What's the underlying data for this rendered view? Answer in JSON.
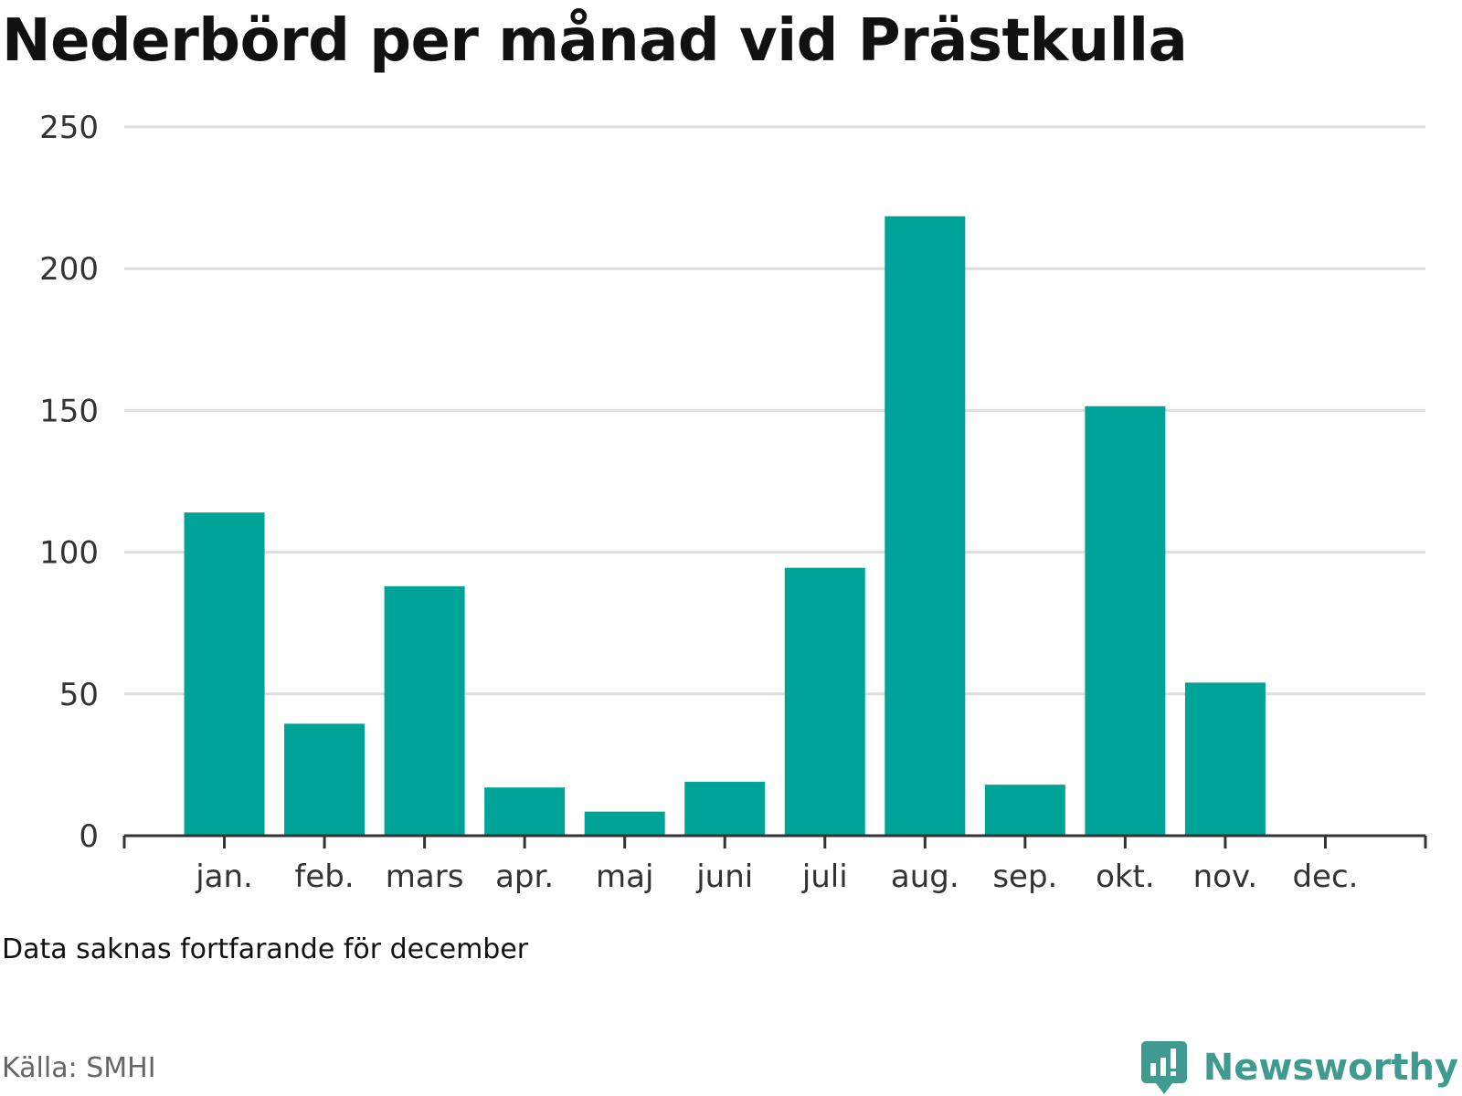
{
  "title": "Nederbörd per månad vid Prästkulla",
  "note": "Data saknas fortfarande för december",
  "source": "Källa: SMHI",
  "brand": {
    "name": "Newsworthy",
    "icon": "newsworthy-logo-icon",
    "color": "#3f9a90"
  },
  "colors": {
    "bar": "#00a398",
    "grid": "#dddddd",
    "axis": "#333333"
  },
  "chart_data": {
    "type": "bar",
    "categories": [
      "jan.",
      "feb.",
      "mars",
      "apr.",
      "maj",
      "juni",
      "juli",
      "aug.",
      "sep.",
      "okt.",
      "nov.",
      "dec."
    ],
    "values": [
      114,
      39.5,
      88,
      17,
      8.5,
      19,
      94.5,
      218.5,
      18,
      151.5,
      54,
      null
    ],
    "ylim": [
      0,
      250
    ],
    "yticks": [
      0,
      50,
      100,
      150,
      200,
      250
    ],
    "xlabel": "",
    "ylabel": "",
    "grid": true,
    "legend": "none"
  }
}
